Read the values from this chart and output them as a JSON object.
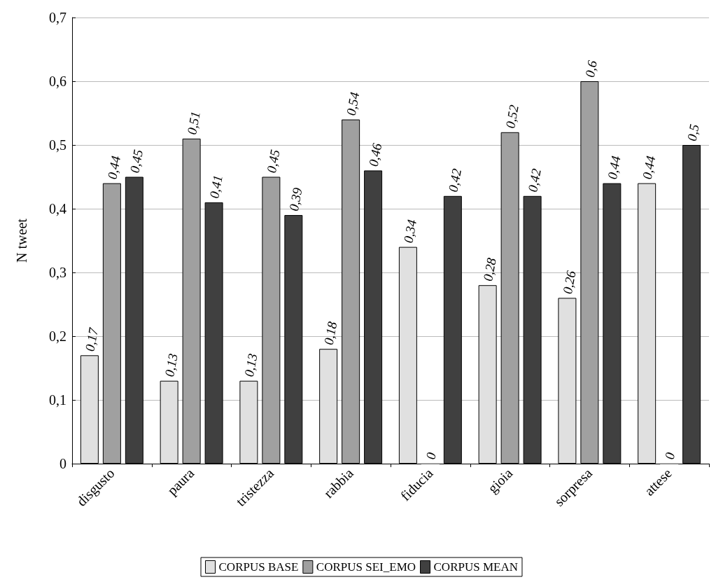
{
  "chart_data": {
    "type": "bar",
    "ylabel": "N tweet",
    "categories": [
      "disgusto",
      "paura",
      "tristezza",
      "rabbia",
      "fiducia",
      "gioia",
      "sorpresa",
      "attese"
    ],
    "series": [
      {
        "name": "CORPUS BASE",
        "color": "#e0e0e0",
        "values": [
          0.17,
          0.13,
          0.13,
          0.18,
          0.34,
          0.28,
          0.26,
          0.44
        ],
        "value_labels": [
          "0,17",
          "0,13",
          "0,13",
          "0,18",
          "0,34",
          "0,28",
          "0,26",
          "0,44"
        ]
      },
      {
        "name": "CORPUS SEI_EMO",
        "color": "#a0a0a0",
        "values": [
          0.44,
          0.51,
          0.45,
          0.54,
          0,
          0.52,
          0.6,
          0
        ],
        "value_labels": [
          "0,44",
          "0,51",
          "0,45",
          "0,54",
          "0",
          "0,52",
          "0,6",
          "0"
        ]
      },
      {
        "name": "CORPUS MEAN",
        "color": "#404040",
        "values": [
          0.45,
          0.41,
          0.39,
          0.46,
          0.42,
          0.42,
          0.44,
          0.5
        ],
        "value_labels": [
          "0,45",
          "0,41",
          "0,39",
          "0,46",
          "0,42",
          "0,42",
          "0,44",
          "0,5"
        ]
      }
    ],
    "ylim": [
      0,
      0.7
    ],
    "yticks": [
      {
        "value": 0,
        "label": "0"
      },
      {
        "value": 0.1,
        "label": "0,1"
      },
      {
        "value": 0.2,
        "label": "0,2"
      },
      {
        "value": 0.3,
        "label": "0,3"
      },
      {
        "value": 0.4,
        "label": "0,4"
      },
      {
        "value": 0.5,
        "label": "0,5"
      },
      {
        "value": 0.6,
        "label": "0,6"
      },
      {
        "value": 0.7,
        "label": "0,7"
      }
    ],
    "grid": "y",
    "legend": "bottom"
  }
}
